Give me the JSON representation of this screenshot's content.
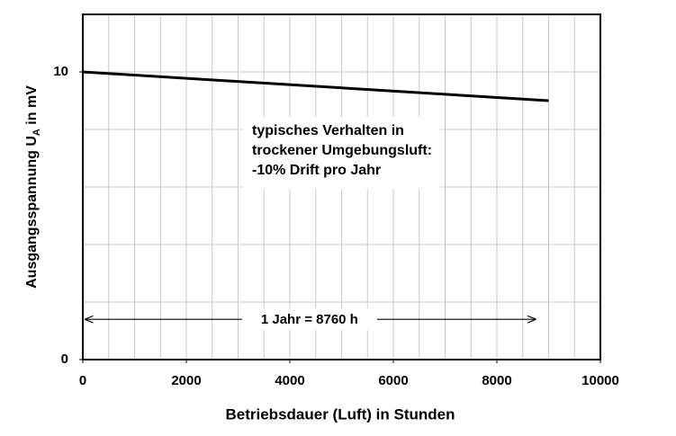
{
  "chart_data": {
    "type": "line",
    "x_label": "Betriebsdauer (Luft)  in Stunden",
    "y_label": "Ausgangsspannung U",
    "y_label_sub": "A",
    "y_label_suffix": " in mV",
    "xlim": [
      0,
      10000
    ],
    "xticks": [
      0,
      2000,
      4000,
      6000,
      8000,
      10000
    ],
    "xgrid": [
      500,
      1000,
      1500,
      2000,
      2500,
      3000,
      3500,
      4000,
      4500,
      5000,
      5500,
      6000,
      6500,
      7000,
      7500,
      8000,
      8500,
      9000,
      9500
    ],
    "ylim": [
      0,
      12
    ],
    "yticks": [
      0,
      10
    ],
    "ygrid": [
      2,
      4,
      6,
      8,
      10
    ],
    "grid": true,
    "series": [
      {
        "color": "#000000",
        "x": [
          0,
          9000
        ],
        "values": [
          10,
          9
        ]
      }
    ],
    "annotation": [
      "typisches Verhalten in",
      "trockener Umgebungsluft:",
      "-10% Drift pro Jahr"
    ],
    "arrow": {
      "x": [
        0,
        8760
      ],
      "y": 1.4,
      "label": "1 Jahr = 8760 h"
    }
  }
}
